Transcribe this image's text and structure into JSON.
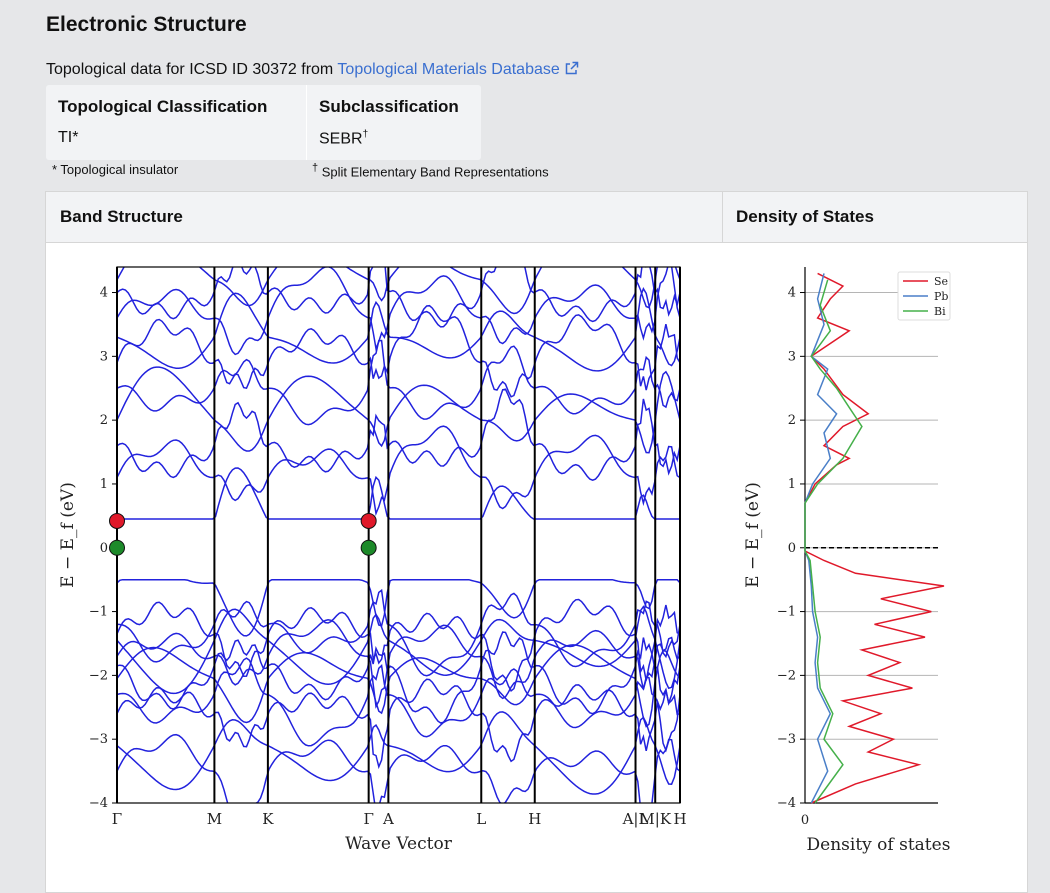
{
  "page": {
    "title": "Electronic Structure",
    "intro_prefix": "Topological data for ICSD ID 30372 from ",
    "link_text": "Topological Materials Database",
    "link_icon": "external-link-icon"
  },
  "classification": {
    "col1_header": "Topological Classification",
    "col1_value": "TI*",
    "col2_header": "Subclassification",
    "col2_value": "SEBR",
    "col2_mark": "†",
    "note1": "* Topological insulator",
    "note2_mark": "†",
    "note2": " Split Elementary Band Representations"
  },
  "panels": {
    "band_title": "Band Structure",
    "dos_title": "Density of States"
  },
  "chart_data": [
    {
      "type": "line",
      "title": "",
      "xlabel": "Wave Vector",
      "ylabel": "E − E_f (eV)",
      "ylim": [
        -4,
        4.4
      ],
      "yticks": [
        -4,
        -3,
        -2,
        -1,
        0,
        1,
        2,
        3,
        4
      ],
      "kpoint_labels": [
        "Γ",
        "M",
        "K",
        "Γ",
        "A",
        "L",
        "H",
        "A|L",
        "M|K",
        "H"
      ],
      "kpoint_positions": [
        0,
        0.173,
        0.268,
        0.447,
        0.482,
        0.647,
        0.742,
        0.921,
        0.956,
        1.0
      ],
      "band_color": "#2222dd",
      "markers": [
        {
          "x": 0.0,
          "y": 0.42,
          "color": "#e0192a"
        },
        {
          "x": 0.0,
          "y": 0.0,
          "color": "#1d8a2a"
        },
        {
          "x": 0.447,
          "y": 0.42,
          "color": "#e0192a"
        },
        {
          "x": 0.447,
          "y": 0.0,
          "color": "#1d8a2a"
        }
      ],
      "valence_bands_at_gamma": [
        -0.55,
        -1.2,
        -1.35,
        -1.45,
        -1.7,
        -1.85,
        -2.05,
        -2.3,
        -2.6,
        -3.1,
        -3.5
      ],
      "conduction_bands_at_gamma": [
        0.42,
        1.1,
        1.6,
        2.0,
        2.5,
        2.9,
        3.3,
        3.6,
        4.0,
        4.2
      ]
    },
    {
      "type": "line",
      "title": "",
      "xlabel": "Density of states",
      "ylabel": "E − E_f (eV)",
      "ylim": [
        -4,
        4.4
      ],
      "yticks": [
        -4,
        -3,
        -2,
        -1,
        0,
        1,
        2,
        3,
        4
      ],
      "xtick": "0",
      "legend_position": "top-right",
      "fermi_level": 0,
      "series": [
        {
          "name": "Se",
          "color": "#e0192a",
          "y": [
            -4.0,
            -3.7,
            -3.4,
            -3.2,
            -3.0,
            -2.8,
            -2.6,
            -2.4,
            -2.2,
            -2.0,
            -1.8,
            -1.6,
            -1.4,
            -1.2,
            -1.0,
            -0.8,
            -0.6,
            -0.4,
            -0.2,
            -0.05,
            0.7,
            1.0,
            1.3,
            1.4,
            1.6,
            1.9,
            2.1,
            2.4,
            2.8,
            3.0,
            3.4,
            3.6,
            3.9,
            4.1,
            4.3
          ],
          "dos": [
            0.05,
            0.4,
            0.9,
            0.5,
            0.7,
            0.35,
            0.6,
            0.3,
            0.85,
            0.5,
            0.75,
            0.45,
            0.95,
            0.55,
            1.0,
            0.6,
            1.1,
            0.4,
            0.15,
            0.0,
            0.0,
            0.08,
            0.25,
            0.35,
            0.15,
            0.3,
            0.5,
            0.3,
            0.15,
            0.05,
            0.35,
            0.1,
            0.2,
            0.3,
            0.1
          ]
        },
        {
          "name": "Pb",
          "color": "#4a7fc8",
          "y": [
            -4.0,
            -3.5,
            -3.0,
            -2.6,
            -2.2,
            -1.8,
            -1.4,
            -1.0,
            -0.6,
            -0.2,
            -0.05,
            0.7,
            1.0,
            1.4,
            1.8,
            2.1,
            2.4,
            2.8,
            3.0,
            3.5,
            3.9,
            4.3
          ],
          "dos": [
            0.05,
            0.18,
            0.1,
            0.2,
            0.1,
            0.08,
            0.1,
            0.06,
            0.05,
            0.03,
            0.0,
            0.0,
            0.06,
            0.2,
            0.15,
            0.25,
            0.1,
            0.18,
            0.05,
            0.15,
            0.1,
            0.15
          ]
        },
        {
          "name": "Bi",
          "color": "#45b04a",
          "y": [
            -4.0,
            -3.4,
            -3.0,
            -2.6,
            -2.2,
            -1.8,
            -1.4,
            -1.0,
            -0.6,
            -0.2,
            -0.05,
            0.7,
            1.0,
            1.4,
            1.9,
            2.2,
            2.5,
            2.8,
            3.0,
            3.4,
            3.8,
            4.2
          ],
          "dos": [
            0.08,
            0.3,
            0.15,
            0.22,
            0.12,
            0.1,
            0.12,
            0.08,
            0.06,
            0.04,
            0.0,
            0.0,
            0.1,
            0.3,
            0.45,
            0.35,
            0.25,
            0.12,
            0.05,
            0.2,
            0.12,
            0.18
          ]
        }
      ]
    }
  ]
}
